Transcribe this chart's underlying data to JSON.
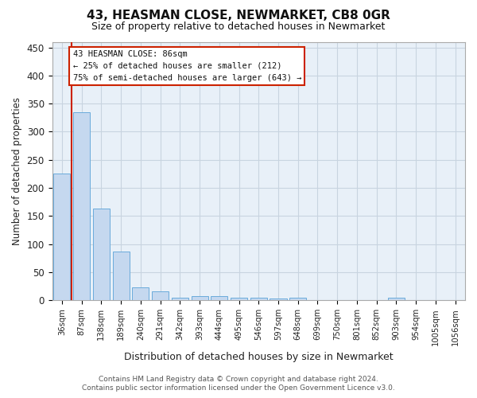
{
  "title1": "43, HEASMAN CLOSE, NEWMARKET, CB8 0GR",
  "title2": "Size of property relative to detached houses in Newmarket",
  "xlabel": "Distribution of detached houses by size in Newmarket",
  "ylabel": "Number of detached properties",
  "footer1": "Contains HM Land Registry data © Crown copyright and database right 2024.",
  "footer2": "Contains public sector information licensed under the Open Government Licence v3.0.",
  "bar_labels": [
    "36sqm",
    "87sqm",
    "138sqm",
    "189sqm",
    "240sqm",
    "291sqm",
    "342sqm",
    "393sqm",
    "444sqm",
    "495sqm",
    "546sqm",
    "597sqm",
    "648sqm",
    "699sqm",
    "750sqm",
    "801sqm",
    "852sqm",
    "903sqm",
    "954sqm",
    "1005sqm",
    "1056sqm"
  ],
  "bar_values": [
    226,
    335,
    164,
    87,
    23,
    16,
    4,
    8,
    8,
    5,
    5,
    3,
    5,
    0,
    0,
    0,
    0,
    4,
    0,
    0,
    0
  ],
  "bar_color": "#c5d8ef",
  "bar_edge_color": "#6aabdb",
  "bg_color": "#ffffff",
  "plot_bg_color": "#e8f0f8",
  "grid_color": "#c8d4e0",
  "vline_color": "#cc2200",
  "annotation_text": "43 HEASMAN CLOSE: 86sqm\n← 25% of detached houses are smaller (212)\n75% of semi-detached houses are larger (643) →",
  "annotation_box_facecolor": "#ffffff",
  "annotation_box_edgecolor": "#cc2200",
  "ylim": [
    0,
    460
  ],
  "yticks": [
    0,
    50,
    100,
    150,
    200,
    250,
    300,
    350,
    400,
    450
  ]
}
